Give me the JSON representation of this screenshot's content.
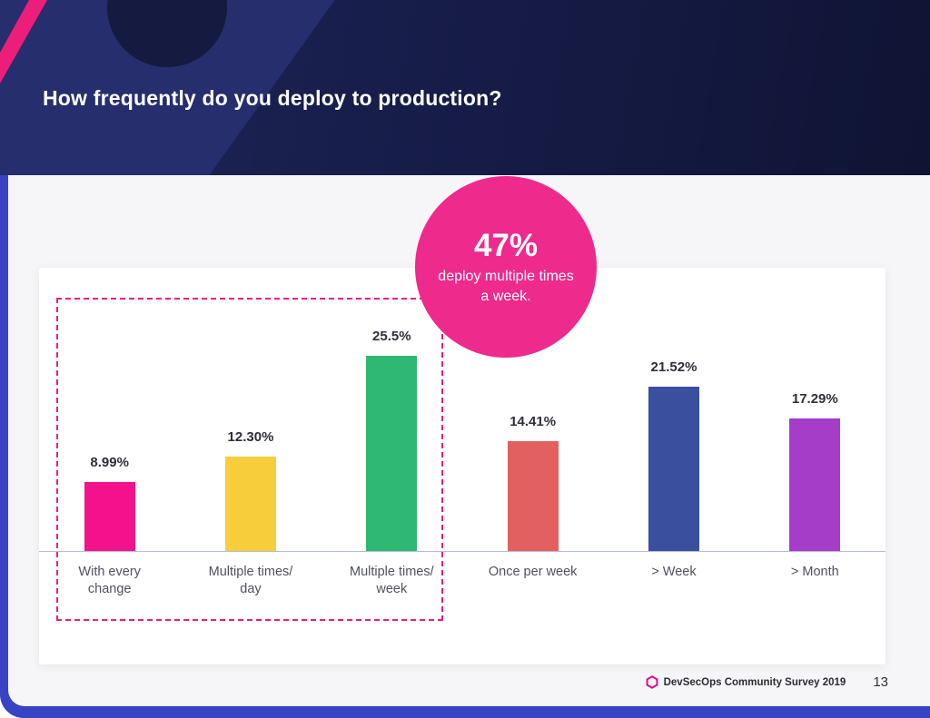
{
  "header": {
    "title": "How frequently do you deploy to production?"
  },
  "callout": {
    "value": "47%",
    "text_line1": "deploy multiple times",
    "text_line2": "a week."
  },
  "chart_data": {
    "type": "bar",
    "title": "How frequently do you deploy to production?",
    "categories": [
      "With every change",
      "Multiple times/day",
      "Multiple times/week",
      "Once per week",
      "> Week",
      "> Month"
    ],
    "category_display_lines": [
      [
        "With every",
        "change"
      ],
      [
        "Multiple times/",
        "day"
      ],
      [
        "Multiple times/",
        "week"
      ],
      [
        "Once per week"
      ],
      [
        "> Week"
      ],
      [
        "> Month"
      ]
    ],
    "values": [
      8.99,
      12.3,
      25.5,
      14.41,
      21.52,
      17.29
    ],
    "labels": [
      "8.99%",
      "12.30%",
      "25.5%",
      "14.41%",
      "21.52%",
      "17.29%"
    ],
    "colors": [
      "#f3128c",
      "#f8cd3c",
      "#2eb873",
      "#e2605f",
      "#3b4f9f",
      "#a53dc9"
    ],
    "ylim": [
      0,
      30
    ],
    "grid": false,
    "legend": false,
    "highlight": {
      "group_indices": [
        0,
        1,
        2
      ],
      "annotation": "47% deploy multiple times a week.",
      "outline_color": "#ee1d7c"
    }
  },
  "footer": {
    "source": "DevSecOps Community Survey 2019",
    "page_number": "13"
  },
  "colors": {
    "accent_pink": "#ee2a8c",
    "frame_blue": "#3843c5",
    "header_navy": "#1b2153"
  }
}
